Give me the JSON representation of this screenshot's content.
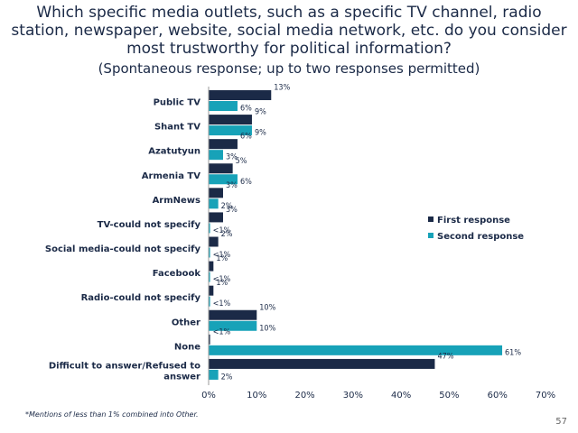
{
  "header": {
    "title_lines": [
      "Which specific media outlets, such as a specific TV channel, radio",
      "station, newspaper, website, social media network,  etc. do you consider",
      "most trustworthy for political information?"
    ],
    "subtitle": "(Spontaneous response; up to two responses permitted)"
  },
  "colors": {
    "first": "#1b2a47",
    "second": "#17a2b8",
    "text": "#1b2a47"
  },
  "chart_data": {
    "type": "bar",
    "orientation": "horizontal",
    "categories": [
      [
        "Public TV"
      ],
      [
        "Shant TV"
      ],
      [
        "Azatutyun"
      ],
      [
        "Armenia TV"
      ],
      [
        "ArmNews"
      ],
      [
        "TV-could not specify"
      ],
      [
        "Social media-could not specify"
      ],
      [
        "Facebook"
      ],
      [
        "Radio-could not specify"
      ],
      [
        "Other"
      ],
      [
        "None"
      ],
      [
        "Difficult to answer/Refused to",
        "answer"
      ]
    ],
    "series": [
      {
        "name": "First response",
        "values": [
          13,
          9,
          6,
          5,
          3,
          3,
          2,
          1,
          1,
          10,
          0.3,
          47
        ],
        "labels": [
          "13%",
          "9%",
          "6%",
          "5%",
          "3%",
          "3%",
          "2%",
          "1%",
          "1%",
          "10%",
          "<1%",
          "47%"
        ]
      },
      {
        "name": "Second response",
        "values": [
          6,
          9,
          3,
          6,
          2,
          0.3,
          0.3,
          0.3,
          0.3,
          10,
          61,
          2
        ],
        "labels": [
          "6%",
          "9%",
          "3%",
          "6%",
          "2%",
          "<1%",
          "<1%",
          "<1%",
          "<1%",
          "10%",
          "61%",
          "2%"
        ]
      }
    ],
    "xlim": [
      0,
      70
    ],
    "xticks": [
      0,
      10,
      20,
      30,
      40,
      50,
      60,
      70
    ],
    "xtick_labels": [
      "0%",
      "10%",
      "20%",
      "30%",
      "40%",
      "50%",
      "60%",
      "70%"
    ],
    "legend_position": "right",
    "grid": false
  },
  "footnote": "*Mentions of less than 1% combined into Other.",
  "page_number": "57"
}
